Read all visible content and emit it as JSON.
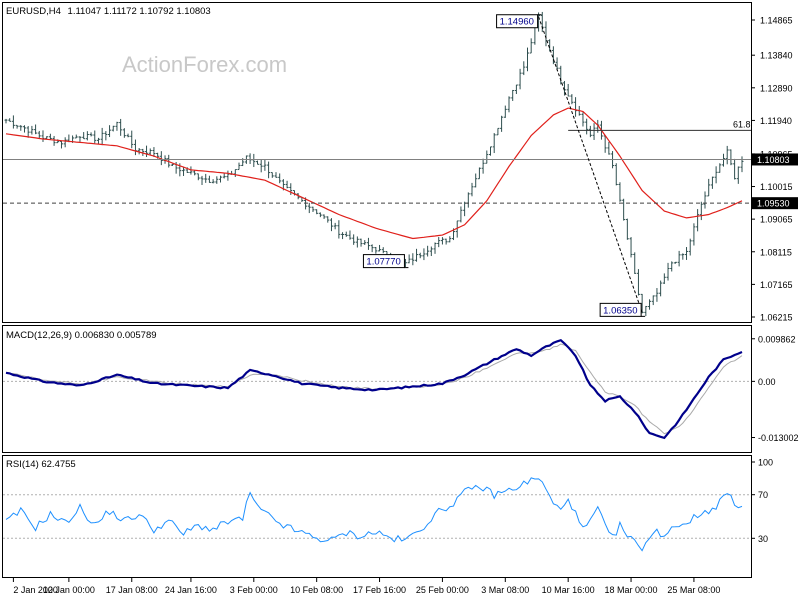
{
  "chart_data": [
    {
      "type": "ohlc",
      "title": "EURUSD,H4",
      "ohlc_readout": "1.11047 1.11172 1.10792 1.10803",
      "watermark": "ActionForex.com",
      "ylim": [
        1.06215,
        1.14865
      ],
      "yticks": [
        1.14865,
        1.1384,
        1.1289,
        1.1194,
        1.10965,
        1.10015,
        1.09065,
        1.08115,
        1.07165,
        1.06215
      ],
      "ytick_labels": [
        "1.14865",
        "1.13840",
        "1.12890",
        "1.11940",
        "1.10965",
        "1.10015",
        "1.09065",
        "1.08115",
        "1.07165",
        "1.06215"
      ],
      "x_index_range": [
        0,
        199
      ],
      "xticks": [
        {
          "label": "2 Jan 2020",
          "index": 2
        },
        {
          "label": "10 Jan 00:00",
          "index": 17
        },
        {
          "label": "17 Jan 08:00",
          "index": 34
        },
        {
          "label": "24 Jan 16:00",
          "index": 50
        },
        {
          "label": "3 Feb 00:00",
          "index": 67
        },
        {
          "label": "10 Feb 08:00",
          "index": 84
        },
        {
          "label": "17 Feb 16:00",
          "index": 101
        },
        {
          "label": "25 Feb 00:00",
          "index": 118
        },
        {
          "label": "3 Mar 08:00",
          "index": 135
        },
        {
          "label": "10 Mar 16:00",
          "index": 152
        },
        {
          "label": "18 Mar 00:00",
          "index": 169
        },
        {
          "label": "25 Mar 08:00",
          "index": 186
        }
      ],
      "price_anchors": [
        [
          0,
          1.1195
        ],
        [
          5,
          1.1172
        ],
        [
          10,
          1.1145
        ],
        [
          15,
          1.113
        ],
        [
          20,
          1.115
        ],
        [
          25,
          1.114
        ],
        [
          30,
          1.1185
        ],
        [
          35,
          1.111
        ],
        [
          40,
          1.11
        ],
        [
          45,
          1.106
        ],
        [
          50,
          1.104
        ],
        [
          55,
          1.102
        ],
        [
          60,
          1.103
        ],
        [
          65,
          1.1085
        ],
        [
          70,
          1.106
        ],
        [
          75,
          1.1
        ],
        [
          80,
          1.096
        ],
        [
          85,
          1.092
        ],
        [
          90,
          1.087
        ],
        [
          95,
          1.084
        ],
        [
          100,
          1.082
        ],
        [
          105,
          1.0785
        ],
        [
          108,
          1.0777
        ],
        [
          112,
          1.0805
        ],
        [
          116,
          1.0835
        ],
        [
          120,
          1.085
        ],
        [
          124,
          1.096
        ],
        [
          128,
          1.105
        ],
        [
          132,
          1.115
        ],
        [
          136,
          1.126
        ],
        [
          140,
          1.135
        ],
        [
          144,
          1.1496
        ],
        [
          146,
          1.143
        ],
        [
          150,
          1.131
        ],
        [
          154,
          1.123
        ],
        [
          158,
          1.115
        ],
        [
          160,
          1.118
        ],
        [
          164,
          1.106
        ],
        [
          168,
          1.085
        ],
        [
          172,
          1.0635
        ],
        [
          176,
          1.069
        ],
        [
          180,
          1.078
        ],
        [
          184,
          1.081
        ],
        [
          188,
          1.095
        ],
        [
          192,
          1.105
        ],
        [
          195,
          1.11
        ],
        [
          197,
          1.103
        ],
        [
          199,
          1.108
        ]
      ],
      "sma_anchors": [
        [
          0,
          1.1155
        ],
        [
          10,
          1.114
        ],
        [
          20,
          1.113
        ],
        [
          30,
          1.112
        ],
        [
          40,
          1.109
        ],
        [
          50,
          1.105
        ],
        [
          60,
          1.104
        ],
        [
          70,
          1.102
        ],
        [
          80,
          1.097
        ],
        [
          90,
          1.092
        ],
        [
          100,
          1.088
        ],
        [
          110,
          1.085
        ],
        [
          118,
          1.086
        ],
        [
          124,
          1.089
        ],
        [
          130,
          1.096
        ],
        [
          136,
          1.106
        ],
        [
          142,
          1.115
        ],
        [
          148,
          1.121
        ],
        [
          152,
          1.123
        ],
        [
          156,
          1.122
        ],
        [
          160,
          1.118
        ],
        [
          166,
          1.109
        ],
        [
          172,
          1.099
        ],
        [
          178,
          1.093
        ],
        [
          184,
          1.091
        ],
        [
          190,
          1.092
        ],
        [
          195,
          1.094
        ],
        [
          199,
          1.096
        ]
      ],
      "last_price": {
        "value": 1.10803,
        "label": "1.10803"
      },
      "support_level": {
        "value": 1.0953,
        "label": "1.09530"
      },
      "fib_level": {
        "value": 1.1165,
        "label": "61.8"
      },
      "annotations": [
        {
          "label": "1.14960",
          "value": 1.1496,
          "index": 144
        },
        {
          "label": "1.07770",
          "value": 1.0777,
          "index": 108
        },
        {
          "label": "1.06350",
          "value": 1.0635,
          "index": 172
        }
      ],
      "trendline": {
        "from": {
          "index": 144,
          "value": 1.1496
        },
        "to": {
          "index": 172,
          "value": 1.0635
        }
      }
    },
    {
      "type": "line",
      "title": "MACD(12,26,9) 0.006830 0.005789",
      "ylim": [
        -0.0145,
        0.0112
      ],
      "yticks": [
        0.009862,
        0.0,
        -0.013002
      ],
      "ytick_labels": [
        "0.009862",
        "0.00",
        "-0.013002"
      ],
      "series": [
        {
          "name": "MACD",
          "role": "main",
          "color": "#00008b",
          "anchors": [
            [
              0,
              0.002
            ],
            [
              10,
              0.0
            ],
            [
              20,
              -0.001
            ],
            [
              30,
              0.0015
            ],
            [
              40,
              -0.0005
            ],
            [
              50,
              -0.001
            ],
            [
              60,
              -0.0015
            ],
            [
              66,
              0.0025
            ],
            [
              72,
              0.0015
            ],
            [
              80,
              -0.0005
            ],
            [
              90,
              -0.0015
            ],
            [
              100,
              -0.002
            ],
            [
              110,
              -0.0012
            ],
            [
              118,
              -0.0005
            ],
            [
              124,
              0.0015
            ],
            [
              132,
              0.005
            ],
            [
              138,
              0.0075
            ],
            [
              142,
              0.006
            ],
            [
              146,
              0.008
            ],
            [
              150,
              0.0095
            ],
            [
              154,
              0.006
            ],
            [
              158,
              -0.001
            ],
            [
              162,
              -0.0045
            ],
            [
              166,
              -0.0035
            ],
            [
              170,
              -0.007
            ],
            [
              174,
              -0.012
            ],
            [
              178,
              -0.013
            ],
            [
              182,
              -0.009
            ],
            [
              186,
              -0.004
            ],
            [
              190,
              0.001
            ],
            [
              194,
              0.005
            ],
            [
              199,
              0.007
            ]
          ]
        },
        {
          "name": "Signal",
          "role": "signal",
          "color": "#aaaaaa",
          "anchors": [
            [
              0,
              0.002
            ],
            [
              10,
              0.0003
            ],
            [
              20,
              -0.0006
            ],
            [
              30,
              0.001
            ],
            [
              40,
              0.0
            ],
            [
              50,
              -0.0008
            ],
            [
              60,
              -0.0012
            ],
            [
              66,
              0.0015
            ],
            [
              72,
              0.0016
            ],
            [
              80,
              0.0002
            ],
            [
              90,
              -0.0012
            ],
            [
              100,
              -0.0018
            ],
            [
              110,
              -0.0014
            ],
            [
              118,
              -0.0007
            ],
            [
              124,
              0.0008
            ],
            [
              132,
              0.004
            ],
            [
              138,
              0.0065
            ],
            [
              142,
              0.0065
            ],
            [
              146,
              0.0072
            ],
            [
              150,
              0.0085
            ],
            [
              154,
              0.0072
            ],
            [
              158,
              0.002
            ],
            [
              162,
              -0.0025
            ],
            [
              166,
              -0.0035
            ],
            [
              170,
              -0.0055
            ],
            [
              174,
              -0.0095
            ],
            [
              178,
              -0.012
            ],
            [
              182,
              -0.0105
            ],
            [
              186,
              -0.0065
            ],
            [
              190,
              -0.0015
            ],
            [
              194,
              0.0035
            ],
            [
              199,
              0.0058
            ]
          ]
        }
      ],
      "last_values": [
        0.00683,
        0.005789
      ]
    },
    {
      "type": "line",
      "title": "RSI(14) 62.4755",
      "ylim": [
        0,
        100
      ],
      "yticks": [
        100,
        70,
        30,
        0
      ],
      "ytick_labels": [
        "100",
        "70",
        "30",
        "0"
      ],
      "series": [
        {
          "name": "RSI",
          "color": "#1e90ff",
          "anchors": [
            [
              0,
              45
            ],
            [
              4,
              55
            ],
            [
              8,
              40
            ],
            [
              12,
              52
            ],
            [
              16,
              44
            ],
            [
              20,
              58
            ],
            [
              24,
              42
            ],
            [
              28,
              55
            ],
            [
              32,
              46
            ],
            [
              36,
              52
            ],
            [
              40,
              38
            ],
            [
              44,
              46
            ],
            [
              48,
              34
            ],
            [
              52,
              42
            ],
            [
              56,
              38
            ],
            [
              60,
              45
            ],
            [
              64,
              48
            ],
            [
              66,
              72
            ],
            [
              68,
              58
            ],
            [
              72,
              48
            ],
            [
              76,
              40
            ],
            [
              80,
              35
            ],
            [
              84,
              30
            ],
            [
              88,
              28
            ],
            [
              92,
              35
            ],
            [
              96,
              32
            ],
            [
              100,
              36
            ],
            [
              104,
              30
            ],
            [
              108,
              28
            ],
            [
              112,
              38
            ],
            [
              116,
              52
            ],
            [
              120,
              60
            ],
            [
              124,
              72
            ],
            [
              128,
              78
            ],
            [
              132,
              70
            ],
            [
              136,
              74
            ],
            [
              140,
              80
            ],
            [
              144,
              86
            ],
            [
              146,
              74
            ],
            [
              148,
              62
            ],
            [
              150,
              55
            ],
            [
              152,
              68
            ],
            [
              154,
              52
            ],
            [
              156,
              38
            ],
            [
              158,
              45
            ],
            [
              160,
              58
            ],
            [
              162,
              40
            ],
            [
              164,
              30
            ],
            [
              166,
              42
            ],
            [
              168,
              32
            ],
            [
              170,
              26
            ],
            [
              172,
              22
            ],
            [
              174,
              30
            ],
            [
              176,
              36
            ],
            [
              178,
              33
            ],
            [
              180,
              40
            ],
            [
              184,
              45
            ],
            [
              188,
              52
            ],
            [
              192,
              60
            ],
            [
              195,
              72
            ],
            [
              197,
              60
            ],
            [
              199,
              62
            ]
          ]
        }
      ],
      "last_value": 62.4755
    }
  ]
}
